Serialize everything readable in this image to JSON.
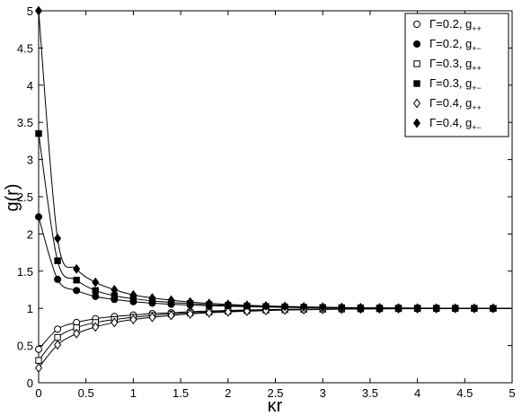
{
  "chart_data": {
    "type": "scatter",
    "title": "",
    "xlabel": "κr",
    "ylabel": "g(r)",
    "xlim": [
      0,
      5
    ],
    "ylim": [
      0,
      5
    ],
    "xticks": [
      "0",
      "0.5",
      "1",
      "1.5",
      "2",
      "2.5",
      "3",
      "3.5",
      "4",
      "4.5",
      "5"
    ],
    "yticks": [
      "0",
      "0.5",
      "1",
      "1.5",
      "2",
      "2.5",
      "3",
      "3.5",
      "4",
      "4.5",
      "5"
    ],
    "grid": false,
    "legend_position": "top-right",
    "series": [
      {
        "label_main": "Γ=0.2, g",
        "label_sub": "++",
        "marker": "circle-open",
        "x": [
          0,
          0.2,
          0.4,
          0.6,
          0.8,
          1.0,
          1.2,
          1.4,
          1.6,
          1.8,
          2.0,
          2.2,
          2.4,
          2.6,
          2.8,
          3.0,
          3.2,
          3.4,
          3.6,
          3.8,
          4.0,
          4.2,
          4.4,
          4.6,
          4.8
        ],
        "y": [
          0.45,
          0.72,
          0.81,
          0.86,
          0.89,
          0.91,
          0.93,
          0.94,
          0.955,
          0.965,
          0.972,
          0.978,
          0.983,
          0.987,
          0.99,
          0.992,
          0.994,
          0.995,
          0.996,
          0.997,
          0.998,
          0.998,
          0.999,
          0.999,
          1.0
        ]
      },
      {
        "label_main": "Γ=0.2, g",
        "label_sub": "+−",
        "marker": "circle-filled",
        "x": [
          0,
          0.2,
          0.4,
          0.6,
          0.8,
          1.0,
          1.2,
          1.4,
          1.6,
          1.8,
          2.0,
          2.2,
          2.4,
          2.6,
          2.8,
          3.0,
          3.2,
          3.4,
          3.6,
          3.8,
          4.0,
          4.2,
          4.4,
          4.6,
          4.8
        ],
        "y": [
          2.23,
          1.39,
          1.24,
          1.16,
          1.12,
          1.09,
          1.07,
          1.055,
          1.045,
          1.035,
          1.028,
          1.022,
          1.017,
          1.013,
          1.01,
          1.008,
          1.006,
          1.005,
          1.004,
          1.003,
          1.002,
          1.002,
          1.001,
          1.001,
          1.0
        ]
      },
      {
        "label_main": "Γ=0.3, g",
        "label_sub": "++",
        "marker": "square-open",
        "x": [
          0,
          0.2,
          0.4,
          0.6,
          0.8,
          1.0,
          1.2,
          1.4,
          1.6,
          1.8,
          2.0,
          2.2,
          2.4,
          2.6,
          2.8,
          3.0,
          3.2,
          3.4,
          3.6,
          3.8,
          4.0,
          4.2,
          4.4,
          4.6,
          4.8
        ],
        "y": [
          0.3,
          0.61,
          0.74,
          0.81,
          0.85,
          0.88,
          0.905,
          0.925,
          0.94,
          0.952,
          0.962,
          0.97,
          0.977,
          0.982,
          0.986,
          0.989,
          0.991,
          0.993,
          0.995,
          0.996,
          0.997,
          0.998,
          0.998,
          0.999,
          1.0
        ]
      },
      {
        "label_main": "Γ=0.3, g",
        "label_sub": "+−",
        "marker": "square-filled",
        "x": [
          0,
          0.2,
          0.4,
          0.6,
          0.8,
          1.0,
          1.2,
          1.4,
          1.6,
          1.8,
          2.0,
          2.2,
          2.4,
          2.6,
          2.8,
          3.0,
          3.2,
          3.4,
          3.6,
          3.8,
          4.0,
          4.2,
          4.4,
          4.6,
          4.8
        ],
        "y": [
          3.35,
          1.64,
          1.38,
          1.24,
          1.17,
          1.13,
          1.1,
          1.08,
          1.065,
          1.05,
          1.04,
          1.032,
          1.025,
          1.02,
          1.015,
          1.012,
          1.009,
          1.007,
          1.005,
          1.004,
          1.003,
          1.002,
          1.002,
          1.001,
          1.0
        ]
      },
      {
        "label_main": "Γ=0.4, g",
        "label_sub": "++",
        "marker": "diamond-open",
        "x": [
          0,
          0.2,
          0.4,
          0.6,
          0.8,
          1.0,
          1.2,
          1.4,
          1.6,
          1.8,
          2.0,
          2.2,
          2.4,
          2.6,
          2.8,
          3.0,
          3.2,
          3.4,
          3.6,
          3.8,
          4.0,
          4.2,
          4.4,
          4.6,
          4.8
        ],
        "y": [
          0.2,
          0.51,
          0.66,
          0.75,
          0.81,
          0.85,
          0.88,
          0.905,
          0.925,
          0.94,
          0.952,
          0.962,
          0.97,
          0.977,
          0.982,
          0.986,
          0.989,
          0.992,
          0.994,
          0.995,
          0.996,
          0.997,
          0.998,
          0.999,
          1.0
        ]
      },
      {
        "label_main": "Γ=0.4, g",
        "label_sub": "+−",
        "marker": "diamond-filled",
        "x": [
          0,
          0.2,
          0.4,
          0.6,
          0.8,
          1.0,
          1.2,
          1.4,
          1.6,
          1.8,
          2.0,
          2.2,
          2.4,
          2.6,
          2.8,
          3.0,
          3.2,
          3.4,
          3.6,
          3.8,
          4.0,
          4.2,
          4.4,
          4.6,
          4.8
        ],
        "y": [
          5.0,
          1.94,
          1.53,
          1.35,
          1.25,
          1.18,
          1.14,
          1.11,
          1.085,
          1.067,
          1.053,
          1.042,
          1.033,
          1.026,
          1.02,
          1.016,
          1.012,
          1.009,
          1.007,
          1.005,
          1.004,
          1.003,
          1.002,
          1.001,
          1.0
        ]
      }
    ]
  }
}
